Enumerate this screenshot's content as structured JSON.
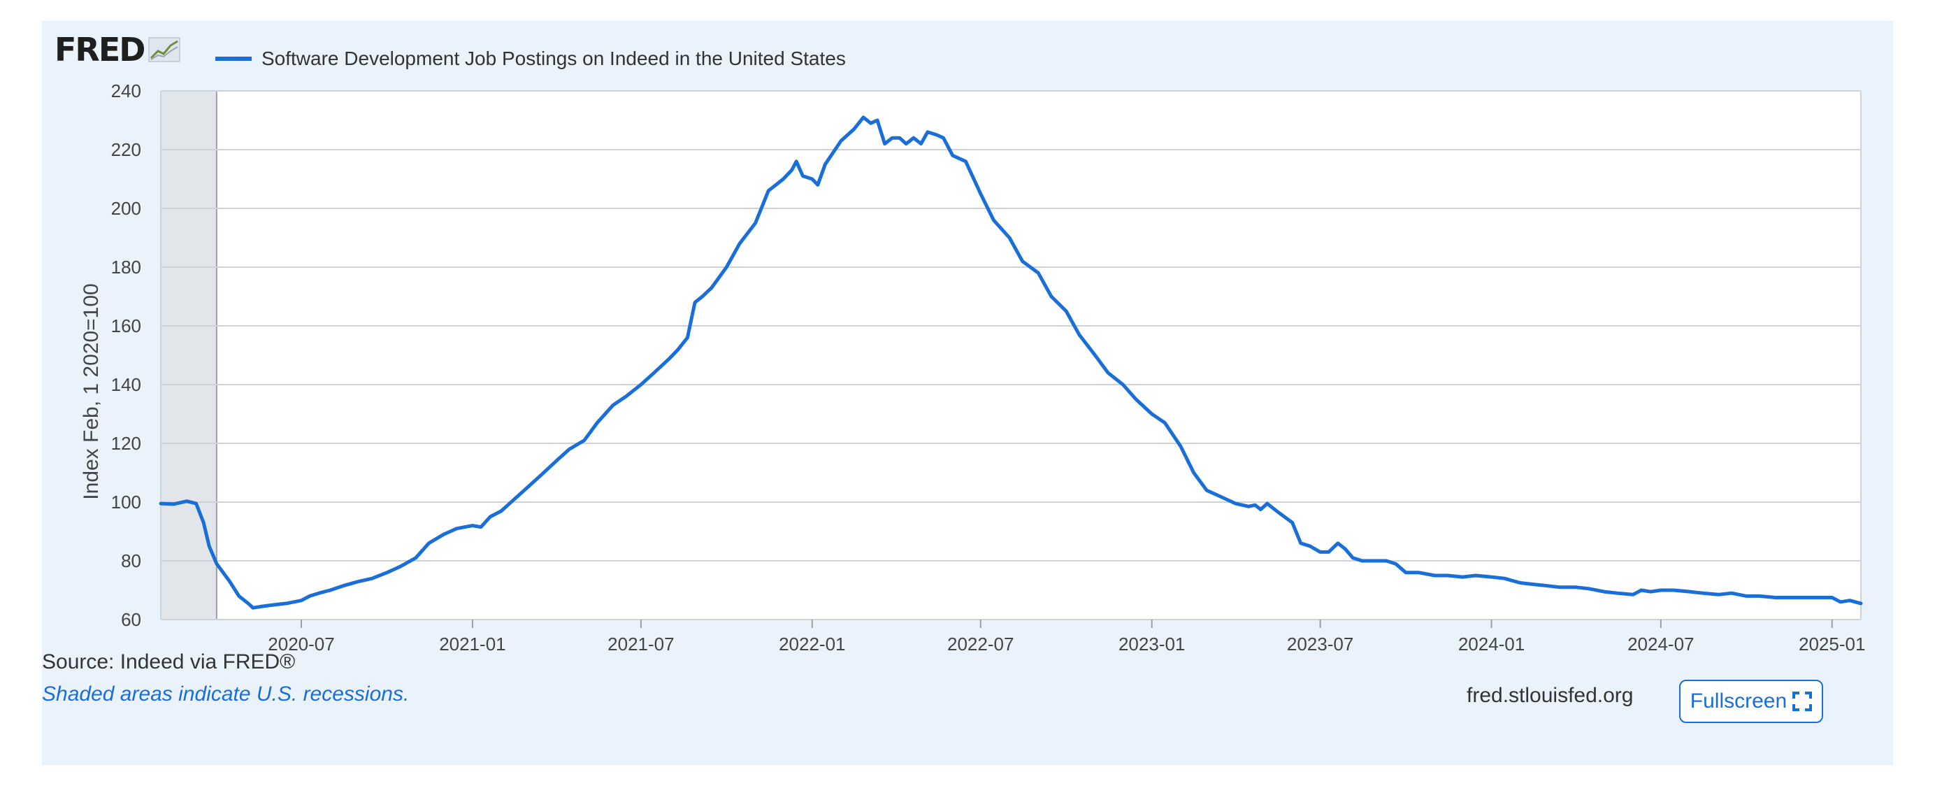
{
  "logo": {
    "text": "FRED",
    "icon": "chart-line-icon"
  },
  "chart_data": {
    "type": "line",
    "series": [
      {
        "name": "Software Development Job Postings on Indeed in the United States",
        "color": "#1a6ed8",
        "points": [
          [
            "2020-02-01",
            99.5
          ],
          [
            "2020-02-15",
            99.3
          ],
          [
            "2020-02-29",
            100.3
          ],
          [
            "2020-03-10",
            99.5
          ],
          [
            "2020-03-18",
            93
          ],
          [
            "2020-03-24",
            85
          ],
          [
            "2020-04-01",
            79
          ],
          [
            "2020-04-15",
            73
          ],
          [
            "2020-04-25",
            68
          ],
          [
            "2020-05-05",
            65.5
          ],
          [
            "2020-05-10",
            64
          ],
          [
            "2020-05-20",
            64.5
          ],
          [
            "2020-06-01",
            65
          ],
          [
            "2020-06-15",
            65.5
          ],
          [
            "2020-07-01",
            66.5
          ],
          [
            "2020-07-10",
            68
          ],
          [
            "2020-07-20",
            69
          ],
          [
            "2020-08-01",
            70
          ],
          [
            "2020-08-15",
            71.5
          ],
          [
            "2020-09-01",
            73
          ],
          [
            "2020-09-15",
            74
          ],
          [
            "2020-10-01",
            76
          ],
          [
            "2020-10-15",
            78
          ],
          [
            "2020-11-01",
            81
          ],
          [
            "2020-11-15",
            86
          ],
          [
            "2020-12-01",
            89
          ],
          [
            "2020-12-15",
            91
          ],
          [
            "2021-01-01",
            92
          ],
          [
            "2021-01-10",
            91.5
          ],
          [
            "2021-01-20",
            95
          ],
          [
            "2021-02-01",
            97
          ],
          [
            "2021-02-15",
            101
          ],
          [
            "2021-03-01",
            105
          ],
          [
            "2021-03-15",
            109
          ],
          [
            "2021-04-01",
            114
          ],
          [
            "2021-04-15",
            118
          ],
          [
            "2021-05-01",
            121
          ],
          [
            "2021-05-15",
            127
          ],
          [
            "2021-06-01",
            133
          ],
          [
            "2021-06-15",
            136
          ],
          [
            "2021-07-01",
            140
          ],
          [
            "2021-07-15",
            144
          ],
          [
            "2021-08-01",
            149
          ],
          [
            "2021-08-10",
            152
          ],
          [
            "2021-08-20",
            156
          ],
          [
            "2021-08-28",
            168
          ],
          [
            "2021-09-05",
            170
          ],
          [
            "2021-09-15",
            173
          ],
          [
            "2021-10-01",
            180
          ],
          [
            "2021-10-15",
            188
          ],
          [
            "2021-11-01",
            195
          ],
          [
            "2021-11-15",
            206
          ],
          [
            "2021-12-01",
            210
          ],
          [
            "2021-12-10",
            213
          ],
          [
            "2021-12-15",
            216
          ],
          [
            "2021-12-22",
            211
          ],
          [
            "2022-01-01",
            210
          ],
          [
            "2022-01-07",
            208
          ],
          [
            "2022-01-15",
            215
          ],
          [
            "2022-02-01",
            223
          ],
          [
            "2022-02-15",
            227
          ],
          [
            "2022-02-25",
            231
          ],
          [
            "2022-03-05",
            229
          ],
          [
            "2022-03-12",
            230
          ],
          [
            "2022-03-20",
            222
          ],
          [
            "2022-03-28",
            224
          ],
          [
            "2022-04-05",
            224
          ],
          [
            "2022-04-12",
            222
          ],
          [
            "2022-04-20",
            224
          ],
          [
            "2022-04-28",
            222
          ],
          [
            "2022-05-05",
            226
          ],
          [
            "2022-05-15",
            225
          ],
          [
            "2022-05-22",
            224
          ],
          [
            "2022-06-01",
            218
          ],
          [
            "2022-06-15",
            216
          ],
          [
            "2022-07-01",
            205
          ],
          [
            "2022-07-15",
            196
          ],
          [
            "2022-08-01",
            190
          ],
          [
            "2022-08-15",
            182
          ],
          [
            "2022-09-01",
            178
          ],
          [
            "2022-09-15",
            170
          ],
          [
            "2022-10-01",
            165
          ],
          [
            "2022-10-15",
            157
          ],
          [
            "2022-11-01",
            150
          ],
          [
            "2022-11-15",
            144
          ],
          [
            "2022-12-01",
            140
          ],
          [
            "2022-12-15",
            135
          ],
          [
            "2023-01-01",
            130
          ],
          [
            "2023-01-15",
            127
          ],
          [
            "2023-02-01",
            119
          ],
          [
            "2023-02-15",
            110
          ],
          [
            "2023-03-01",
            104
          ],
          [
            "2023-03-15",
            102
          ],
          [
            "2023-04-01",
            99.5
          ],
          [
            "2023-04-15",
            98.5
          ],
          [
            "2023-04-22",
            99
          ],
          [
            "2023-04-28",
            97.5
          ],
          [
            "2023-05-05",
            99.5
          ],
          [
            "2023-05-15",
            97
          ],
          [
            "2023-06-01",
            93
          ],
          [
            "2023-06-10",
            86
          ],
          [
            "2023-06-20",
            85
          ],
          [
            "2023-07-01",
            83
          ],
          [
            "2023-07-10",
            83
          ],
          [
            "2023-07-20",
            86
          ],
          [
            "2023-07-28",
            84
          ],
          [
            "2023-08-05",
            81
          ],
          [
            "2023-08-15",
            80
          ],
          [
            "2023-08-28",
            80
          ],
          [
            "2023-09-10",
            80
          ],
          [
            "2023-09-20",
            79
          ],
          [
            "2023-10-01",
            76
          ],
          [
            "2023-10-15",
            76
          ],
          [
            "2023-11-01",
            75
          ],
          [
            "2023-11-15",
            75
          ],
          [
            "2023-12-01",
            74.5
          ],
          [
            "2023-12-15",
            75
          ],
          [
            "2024-01-01",
            74.5
          ],
          [
            "2024-01-15",
            74
          ],
          [
            "2024-02-01",
            72.5
          ],
          [
            "2024-02-15",
            72
          ],
          [
            "2024-03-01",
            71.5
          ],
          [
            "2024-03-15",
            71
          ],
          [
            "2024-04-01",
            71
          ],
          [
            "2024-04-15",
            70.5
          ],
          [
            "2024-05-01",
            69.5
          ],
          [
            "2024-05-15",
            69
          ],
          [
            "2024-06-01",
            68.5
          ],
          [
            "2024-06-10",
            70
          ],
          [
            "2024-06-20",
            69.5
          ],
          [
            "2024-07-01",
            70
          ],
          [
            "2024-07-15",
            70
          ],
          [
            "2024-08-01",
            69.5
          ],
          [
            "2024-08-15",
            69
          ],
          [
            "2024-09-01",
            68.5
          ],
          [
            "2024-09-15",
            69
          ],
          [
            "2024-10-01",
            68
          ],
          [
            "2024-10-15",
            68
          ],
          [
            "2024-11-01",
            67.5
          ],
          [
            "2024-11-15",
            67.5
          ],
          [
            "2024-12-01",
            67.5
          ],
          [
            "2024-12-15",
            67.5
          ],
          [
            "2025-01-01",
            67.5
          ],
          [
            "2025-01-10",
            66
          ],
          [
            "2025-01-20",
            66.5
          ],
          [
            "2025-02-01",
            65.5
          ]
        ]
      }
    ],
    "xlabel": "",
    "ylabel": "Index Feb, 1 2020=100",
    "xlim": [
      "2020-02-01",
      "2025-02-01"
    ],
    "ylim": [
      60,
      240
    ],
    "yticks": [
      60,
      80,
      100,
      120,
      140,
      160,
      180,
      200,
      220,
      240
    ],
    "xticks": [
      "2020-07",
      "2021-01",
      "2021-07",
      "2022-01",
      "2022-07",
      "2023-01",
      "2023-07",
      "2024-01",
      "2024-07",
      "2025-01"
    ],
    "recessions": [
      [
        "2020-02-01",
        "2020-04-01"
      ]
    ],
    "recession_color": "#e2e6ea",
    "grid": true,
    "legend": "top-left"
  },
  "footer": {
    "source": "Source: Indeed via FRED®",
    "recession_note": "Shaded areas indicate U.S. recessions.",
    "site": "fred.stlouisfed.org",
    "fullscreen_label": "Fullscreen",
    "fullscreen_icon": "expand-icon"
  }
}
